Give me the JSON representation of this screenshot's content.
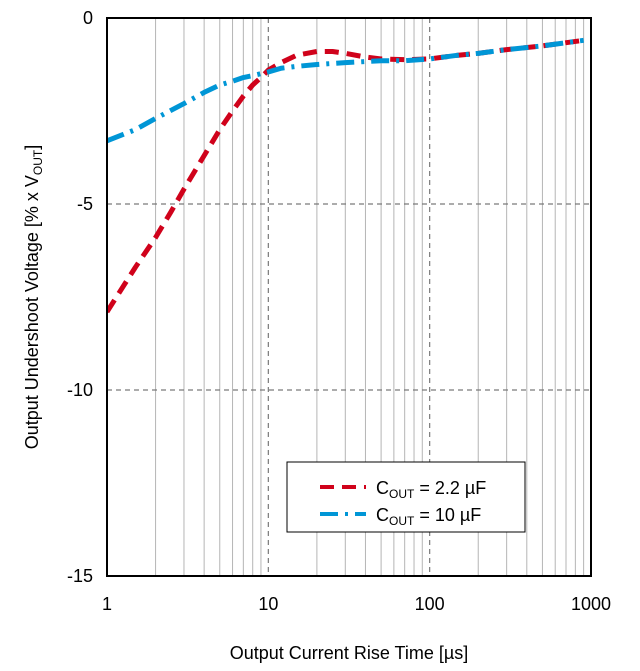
{
  "chart_data": {
    "type": "line",
    "title": "",
    "x_scale": "log",
    "xlim": [
      1,
      1000
    ],
    "ylim": [
      -15,
      0
    ],
    "x_ticks": [
      1,
      10,
      100,
      1000
    ],
    "x_tick_labels": [
      "1",
      "10",
      "100",
      "1000"
    ],
    "y_ticks": [
      0,
      -5,
      -10,
      -15
    ],
    "y_tick_labels": [
      "0",
      "-5",
      "-10",
      "-15"
    ],
    "xlabel": "Output Current Rise Time [µs]",
    "ylabel": {
      "prefix": "Output Undershoot Voltage [% x V",
      "sub": "OUT",
      "suffix": "]"
    },
    "grid": {
      "major": "dashed",
      "minor": "solid"
    },
    "legend_position": "bottom-right",
    "series": [
      {
        "name_main": "C",
        "name_sub": "OUT",
        "name_rest": " = 2.2 µF",
        "color": "#D0021B",
        "dash": "dashed",
        "x": [
          1,
          1.5,
          2,
          2.5,
          3,
          4,
          5,
          6,
          7,
          8,
          9,
          10,
          12,
          15,
          20,
          25,
          30,
          40,
          50,
          70,
          100,
          150,
          200,
          300,
          500,
          900
        ],
        "y": [
          -7.9,
          -6.7,
          -5.9,
          -5.2,
          -4.6,
          -3.7,
          -3.0,
          -2.5,
          -2.1,
          -1.8,
          -1.6,
          -1.4,
          -1.2,
          -1.0,
          -0.9,
          -0.9,
          -0.95,
          -1.05,
          -1.1,
          -1.12,
          -1.1,
          -1.0,
          -0.95,
          -0.85,
          -0.75,
          -0.6
        ]
      },
      {
        "name_main": "C",
        "name_sub": "OUT",
        "name_rest": " = 10 µF",
        "color": "#0096D6",
        "dash": "dashdot",
        "x": [
          1,
          1.5,
          2,
          3,
          4,
          5,
          6,
          7,
          8,
          10,
          12,
          15,
          20,
          30,
          50,
          70,
          100,
          150,
          200,
          300,
          500,
          900
        ],
        "y": [
          -3.3,
          -3.0,
          -2.7,
          -2.3,
          -2.0,
          -1.8,
          -1.7,
          -1.6,
          -1.55,
          -1.45,
          -1.35,
          -1.3,
          -1.25,
          -1.2,
          -1.15,
          -1.15,
          -1.1,
          -1.0,
          -0.95,
          -0.85,
          -0.75,
          -0.6
        ]
      }
    ]
  }
}
